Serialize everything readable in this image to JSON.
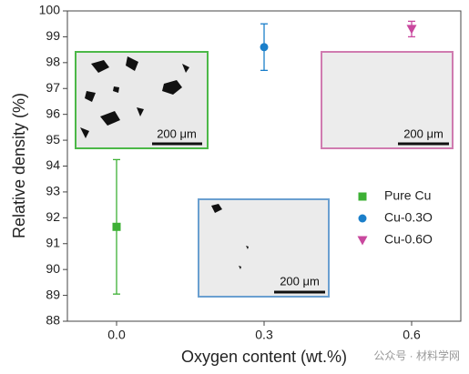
{
  "chart_data": {
    "type": "scatter",
    "x_label": "Oxygen content (wt.%)",
    "y_label": "Relative density (%)",
    "xlim": [
      -0.1,
      0.7
    ],
    "xticks": [
      {
        "value": 0,
        "label": "0.0"
      },
      0.3,
      0.6
    ],
    "ylim": [
      88,
      100
    ],
    "yticks": [
      88,
      89,
      90,
      91,
      92,
      93,
      94,
      95,
      96,
      97,
      98,
      99,
      100
    ],
    "legend": "right",
    "series": [
      {
        "name": "Pure Cu",
        "color": "#3db035",
        "marker": "square",
        "x": [
          0
        ],
        "values": [
          91.65
        ],
        "errors": [
          2.6
        ]
      },
      {
        "name": "Cu-0.3O",
        "color": "#1b7fca",
        "marker": "circle",
        "x": [
          0.3
        ],
        "values": [
          98.6
        ],
        "errors": [
          0.9
        ]
      },
      {
        "name": "Cu-0.6O",
        "color": "#c9489e",
        "marker": "triangle-down",
        "x": [
          0.6
        ],
        "values": [
          99.3
        ],
        "errors": [
          0.3
        ]
      }
    ],
    "insets": [
      {
        "scale": "200 μm"
      },
      {
        "scale": "200 μm"
      },
      {
        "scale": "200 μm"
      }
    ],
    "watermark": "公众号 · 材料学网"
  }
}
